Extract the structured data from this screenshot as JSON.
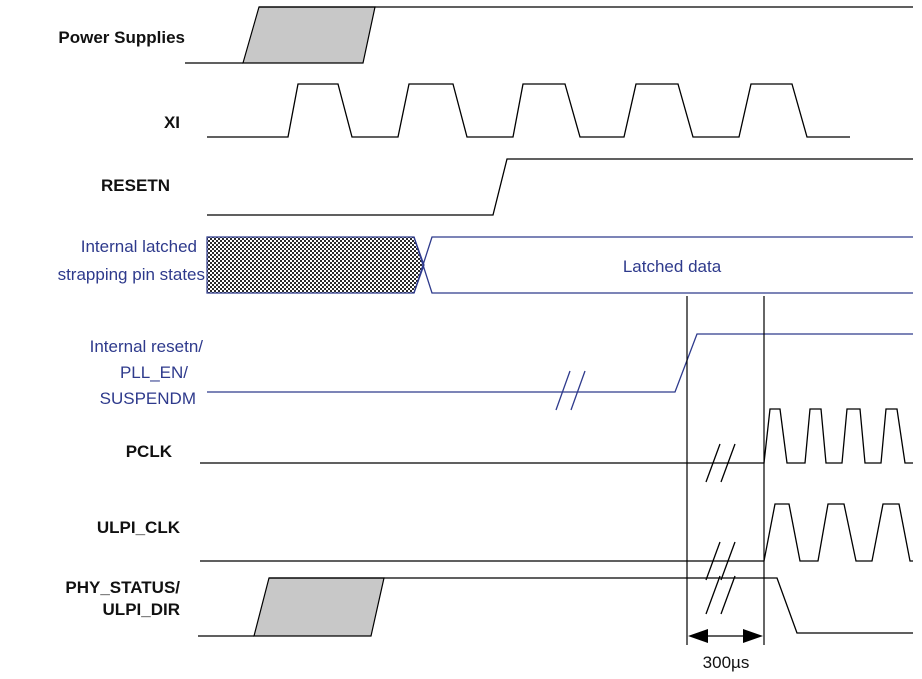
{
  "labels": {
    "power_supplies": "Power Supplies",
    "xi": "XI",
    "resetn": "RESETN",
    "strap_line1": "Internal latched",
    "strap_line2": "strapping pin states",
    "internal_line1": "Internal resetn/",
    "internal_line2": "PLL_EN/",
    "internal_line3": "SUSPENDM",
    "pclk": "PCLK",
    "ulpi_clk": "ULPI_CLK",
    "phy_line1": "PHY_STATUS/",
    "phy_line2": "ULPI_DIR",
    "latched_data": "Latched data",
    "duration": "300µs"
  },
  "colors": {
    "signal": "#000000",
    "internal_signal": "#2e3a8c",
    "transition_fill": "#c8c8c8"
  }
}
